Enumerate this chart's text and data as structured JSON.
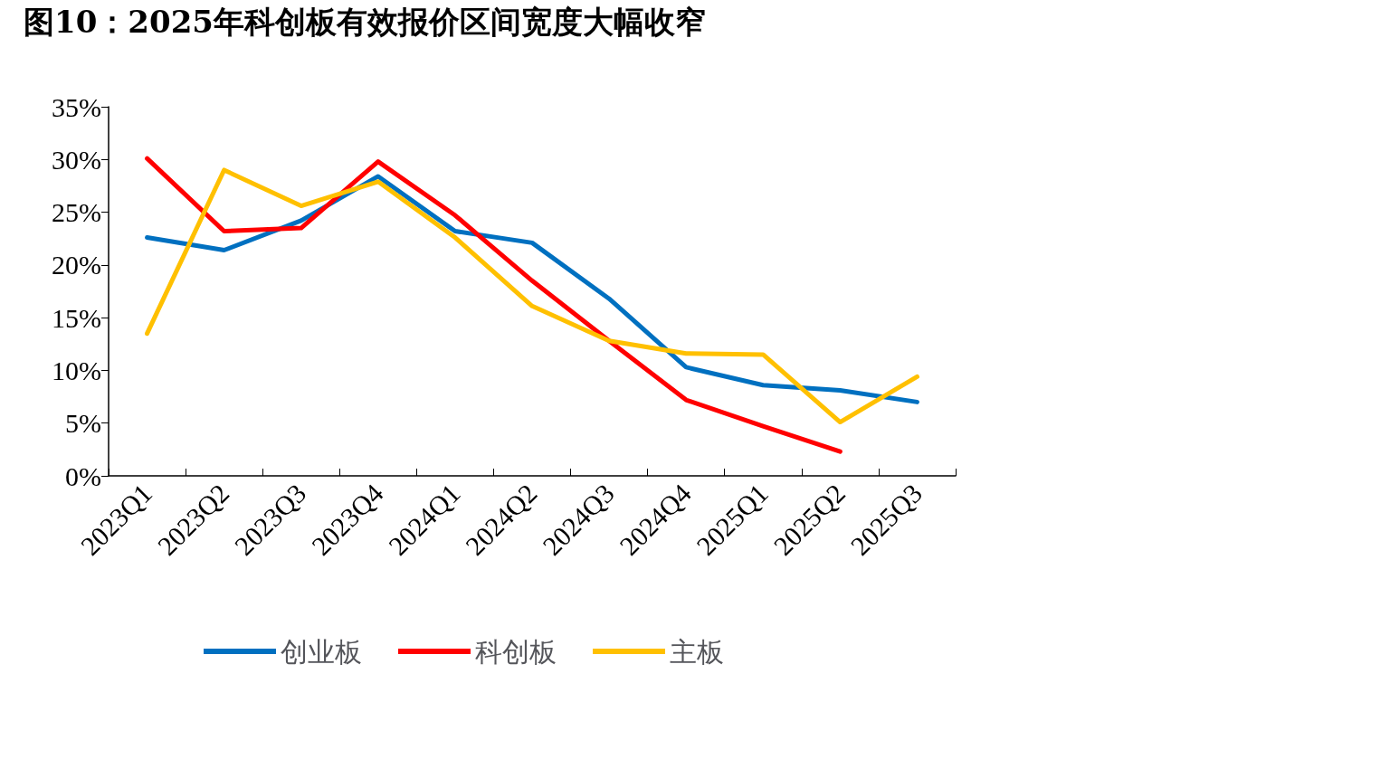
{
  "chart_data": {
    "type": "line",
    "title": "图10：2025年科创板有效报价区间宽度大幅收窄",
    "categories": [
      "2023Q1",
      "2023Q2",
      "2023Q3",
      "2023Q4",
      "2024Q1",
      "2024Q2",
      "2024Q3",
      "2024Q4",
      "2025Q1",
      "2025Q2",
      "2025Q3"
    ],
    "series": [
      {
        "name": "创业板",
        "color": "#0070c0",
        "values": [
          22.6,
          21.4,
          24.2,
          28.4,
          23.2,
          22.1,
          16.8,
          10.3,
          8.6,
          8.1,
          7.0
        ]
      },
      {
        "name": "科创板",
        "color": "#ff0000",
        "values": [
          30.1,
          23.2,
          23.5,
          29.8,
          24.7,
          18.5,
          12.8,
          7.2,
          4.7,
          2.3,
          null
        ]
      },
      {
        "name": "主板",
        "color": "#ffc000",
        "values": [
          13.5,
          29.0,
          25.6,
          27.9,
          22.6,
          16.1,
          12.8,
          11.6,
          11.5,
          5.1,
          9.4
        ]
      }
    ],
    "ylim": [
      0,
      35
    ],
    "yticks": [
      {
        "value": 0,
        "label": "0%"
      },
      {
        "value": 5,
        "label": "5%"
      },
      {
        "value": 10,
        "label": "10%"
      },
      {
        "value": 15,
        "label": "15%"
      },
      {
        "value": 20,
        "label": "20%"
      },
      {
        "value": 25,
        "label": "25%"
      },
      {
        "value": 30,
        "label": "30%"
      },
      {
        "value": 35,
        "label": "35%"
      }
    ],
    "grid": false,
    "legend": "bottom",
    "marker": "none",
    "line_style": "solid"
  }
}
